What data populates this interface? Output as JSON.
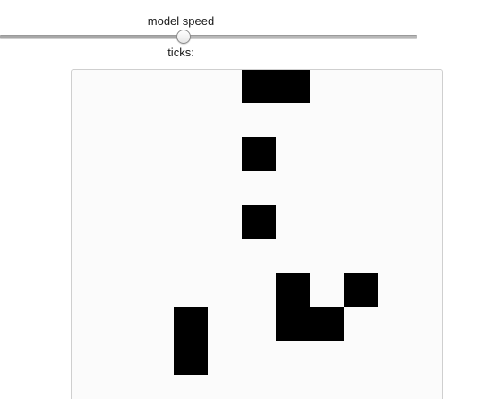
{
  "speed_slider": {
    "label": "model speed",
    "value_fraction": 0.44
  },
  "ticks": {
    "label": "ticks:",
    "value": ""
  },
  "world": {
    "background_color": "#fbfbfb",
    "cell_color": "#000000",
    "live_cells": [
      {
        "col": 5,
        "row": 0
      },
      {
        "col": 6,
        "row": 0
      },
      {
        "col": 5,
        "row": 2
      },
      {
        "col": 5,
        "row": 4
      },
      {
        "col": 6,
        "row": 6
      },
      {
        "col": 8,
        "row": 6
      },
      {
        "col": 6,
        "row": 7
      },
      {
        "col": 7,
        "row": 7
      },
      {
        "col": 3,
        "row": 7
      },
      {
        "col": 3,
        "row": 8
      }
    ]
  }
}
